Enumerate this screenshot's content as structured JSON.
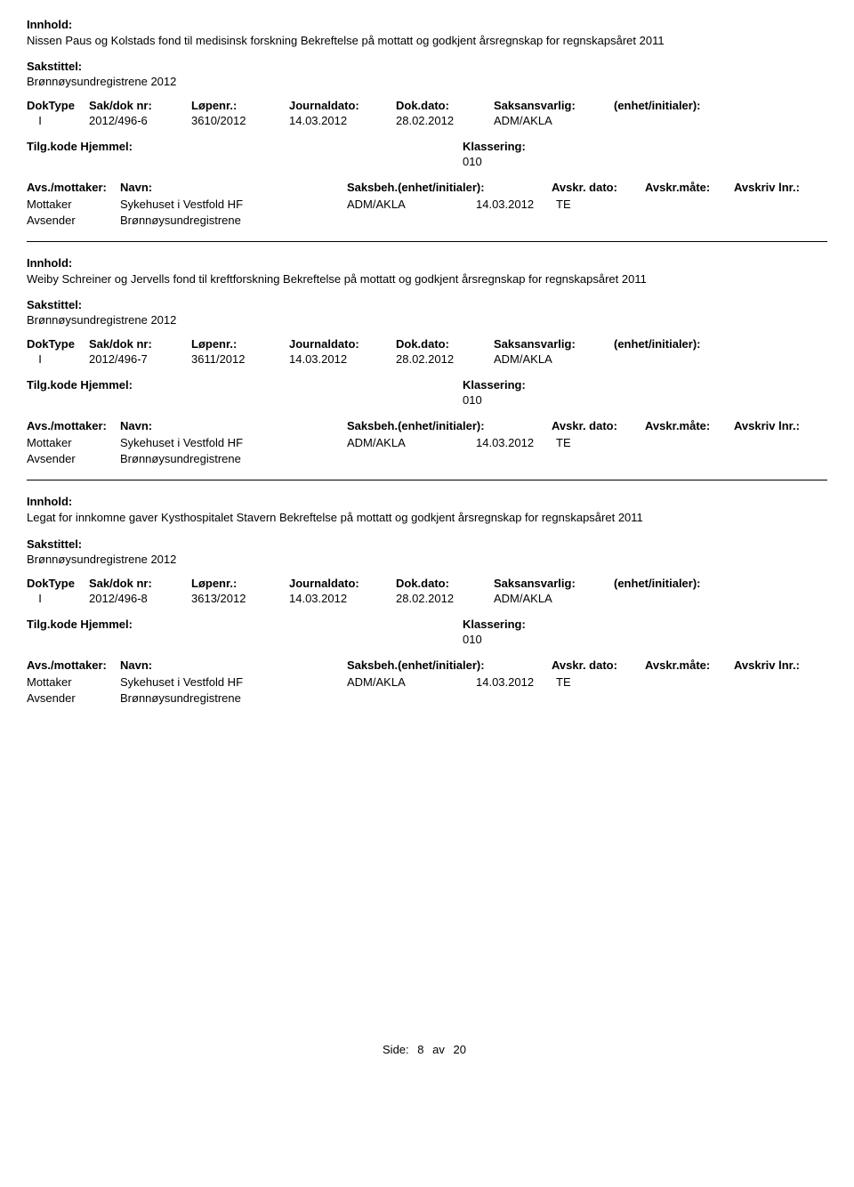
{
  "labels": {
    "innhold": "Innhold:",
    "sakstittel": "Sakstittel:",
    "doktype": "DokType",
    "saknr": "Sak/dok nr:",
    "lopenr": "Løpenr.:",
    "journaldato": "Journaldato:",
    "dokdato": "Dok.dato:",
    "saksansvarlig": "Saksansvarlig:",
    "enhet": "(enhet/initialer):",
    "tilgkode": "Tilg.kode",
    "hjemmel": "Hjemmel:",
    "klassering": "Klassering:",
    "avsmottaker": "Avs./mottaker:",
    "navn": "Navn:",
    "saksbeh": "Saksbeh.(enhet/initialer):",
    "avskrdato": "Avskr. dato:",
    "avskrmate": "Avskr.måte:",
    "avskrinr": "Avskriv lnr.:",
    "mottaker": "Mottaker",
    "avsender": "Avsender"
  },
  "records": [
    {
      "innhold": "Nissen Paus og Kolstads fond til medisinsk forskning Bekreftelse på mottatt og godkjent årsregnskap for regnskapsåret 2011",
      "sakstittel": "Brønnøysundregistrene 2012",
      "doktype": "I",
      "saknr": "2012/496-6",
      "lopenr": "3610/2012",
      "journaldato": "14.03.2012",
      "dokdato": "28.02.2012",
      "saksansvarlig": "ADM/AKLA",
      "klassering": "010",
      "mottaker_name": "Sykehuset i Vestfold HF",
      "mottaker_saksbeh": "ADM/AKLA",
      "mottaker_date": "14.03.2012",
      "mottaker_mate": "TE",
      "avsender_name": "Brønnøysundregistrene"
    },
    {
      "innhold": "Weiby Schreiner og Jervells fond til kreftforskning Bekreftelse på mottatt og godkjent årsregnskap for regnskapsåret 2011",
      "sakstittel": "Brønnøysundregistrene 2012",
      "doktype": "I",
      "saknr": "2012/496-7",
      "lopenr": "3611/2012",
      "journaldato": "14.03.2012",
      "dokdato": "28.02.2012",
      "saksansvarlig": "ADM/AKLA",
      "klassering": "010",
      "mottaker_name": "Sykehuset i Vestfold HF",
      "mottaker_saksbeh": "ADM/AKLA",
      "mottaker_date": "14.03.2012",
      "mottaker_mate": "TE",
      "avsender_name": "Brønnøysundregistrene"
    },
    {
      "innhold": "Legat for innkomne gaver Kysthospitalet Stavern Bekreftelse på mottatt og godkjent årsregnskap for regnskapsåret 2011",
      "sakstittel": "Brønnøysundregistrene 2012",
      "doktype": "I",
      "saknr": "2012/496-8",
      "lopenr": "3613/2012",
      "journaldato": "14.03.2012",
      "dokdato": "28.02.2012",
      "saksansvarlig": "ADM/AKLA",
      "klassering": "010",
      "mottaker_name": "Sykehuset i Vestfold HF",
      "mottaker_saksbeh": "ADM/AKLA",
      "mottaker_date": "14.03.2012",
      "mottaker_mate": "TE",
      "avsender_name": "Brønnøysundregistrene"
    }
  ],
  "footer": {
    "prefix": "Side:",
    "page": "8",
    "separator": "av",
    "total": "20"
  }
}
